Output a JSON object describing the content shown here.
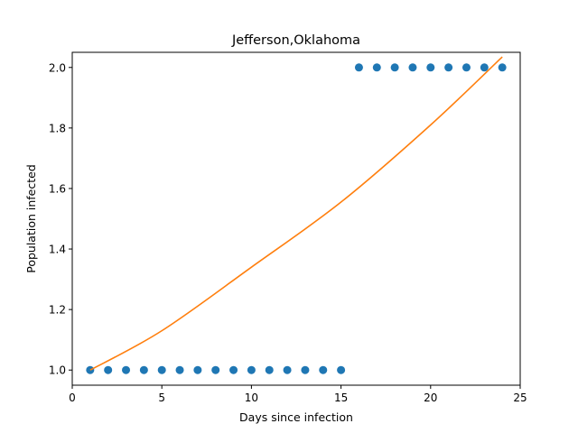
{
  "chart_data": {
    "type": "scatter",
    "title": "Jefferson,Oklahoma",
    "xlabel": "Days since infection",
    "ylabel": "Population infected",
    "xlim": [
      0,
      25
    ],
    "ylim": [
      0.95,
      2.05
    ],
    "grid": false,
    "xticks": [
      0,
      5,
      10,
      15,
      20,
      25
    ],
    "yticks": [
      1.0,
      1.2,
      1.4,
      1.6,
      1.8,
      2.0
    ],
    "xtick_labels": [
      "0",
      "5",
      "10",
      "15",
      "20",
      "25"
    ],
    "ytick_labels": [
      "1.0",
      "1.2",
      "1.4",
      "1.6",
      "1.8",
      "2.0"
    ],
    "series": [
      {
        "kind": "scatter",
        "color": "#1f77b4",
        "x": [
          1,
          2,
          3,
          4,
          5,
          6,
          7,
          8,
          9,
          10,
          11,
          12,
          13,
          14,
          15,
          16,
          17,
          18,
          19,
          20,
          21,
          22,
          23,
          24
        ],
        "y": [
          1,
          1,
          1,
          1,
          1,
          1,
          1,
          1,
          1,
          1,
          1,
          1,
          1,
          1,
          1,
          2,
          2,
          2,
          2,
          2,
          2,
          2,
          2,
          2
        ]
      },
      {
        "kind": "line",
        "color": "#ff7f0e",
        "x": [
          1,
          5,
          10,
          15,
          20,
          24
        ],
        "y": [
          1.0,
          1.13,
          1.34,
          1.555,
          1.81,
          2.035
        ]
      }
    ]
  }
}
